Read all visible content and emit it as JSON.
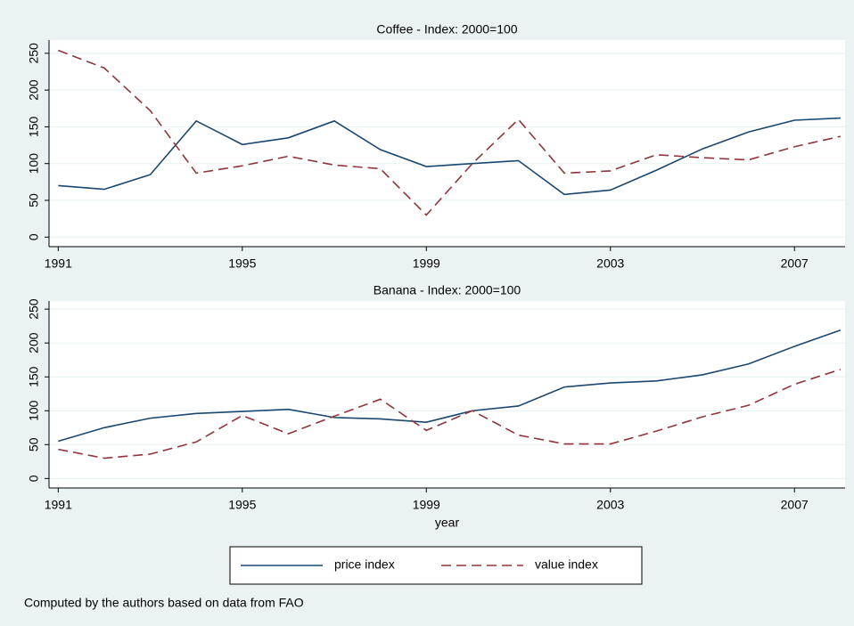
{
  "chart_data": [
    {
      "type": "line",
      "title": "Coffee - Index: 2000=100",
      "x": [
        1991,
        1992,
        1993,
        1994,
        1995,
        1996,
        1997,
        1998,
        1999,
        2000,
        2001,
        2002,
        2003,
        2004,
        2005,
        2006,
        2007,
        2008
      ],
      "series": [
        {
          "name": "price index",
          "color": "#1a476f",
          "dash": false,
          "values": [
            70,
            65,
            85,
            158,
            126,
            135,
            158,
            119,
            96,
            100,
            104,
            58,
            64,
            91,
            120,
            143,
            159,
            162
          ]
        },
        {
          "name": "value index",
          "color": "#90353b",
          "dash": true,
          "values": [
            254,
            230,
            172,
            87,
            97,
            110,
            98,
            93,
            30,
            100,
            160,
            87,
            90,
            112,
            108,
            105,
            123,
            137
          ]
        }
      ],
      "xlim": [
        1990.8,
        2008.1
      ],
      "xticks": [
        1991,
        1995,
        1999,
        2003,
        2007
      ],
      "ylim": [
        -13,
        268
      ],
      "yticks": [
        0,
        50,
        100,
        150,
        200,
        250
      ],
      "grid": true
    },
    {
      "type": "line",
      "title": "Banana - Index: 2000=100",
      "xlabel": "year",
      "x": [
        1991,
        1992,
        1993,
        1994,
        1995,
        1996,
        1997,
        1998,
        1999,
        2000,
        2001,
        2002,
        2003,
        2004,
        2005,
        2006,
        2007,
        2008
      ],
      "series": [
        {
          "name": "price index",
          "color": "#1a476f",
          "dash": false,
          "values": [
            55,
            75,
            89,
            96,
            99,
            102,
            90,
            88,
            83,
            100,
            107,
            135,
            141,
            144,
            153,
            169,
            195,
            219
          ]
        },
        {
          "name": "value index",
          "color": "#90353b",
          "dash": true,
          "values": [
            43,
            30,
            36,
            54,
            93,
            66,
            92,
            117,
            71,
            100,
            64,
            51,
            51,
            70,
            91,
            108,
            139,
            161
          ]
        }
      ],
      "xlim": [
        1990.8,
        2008.1
      ],
      "xticks": [
        1991,
        1995,
        1999,
        2003,
        2007
      ],
      "ylim": [
        -14,
        262
      ],
      "yticks": [
        0,
        50,
        100,
        150,
        200,
        250
      ],
      "grid": true,
      "legend": "bottom",
      "note": "Computed by the authors based on data from FAO"
    }
  ]
}
